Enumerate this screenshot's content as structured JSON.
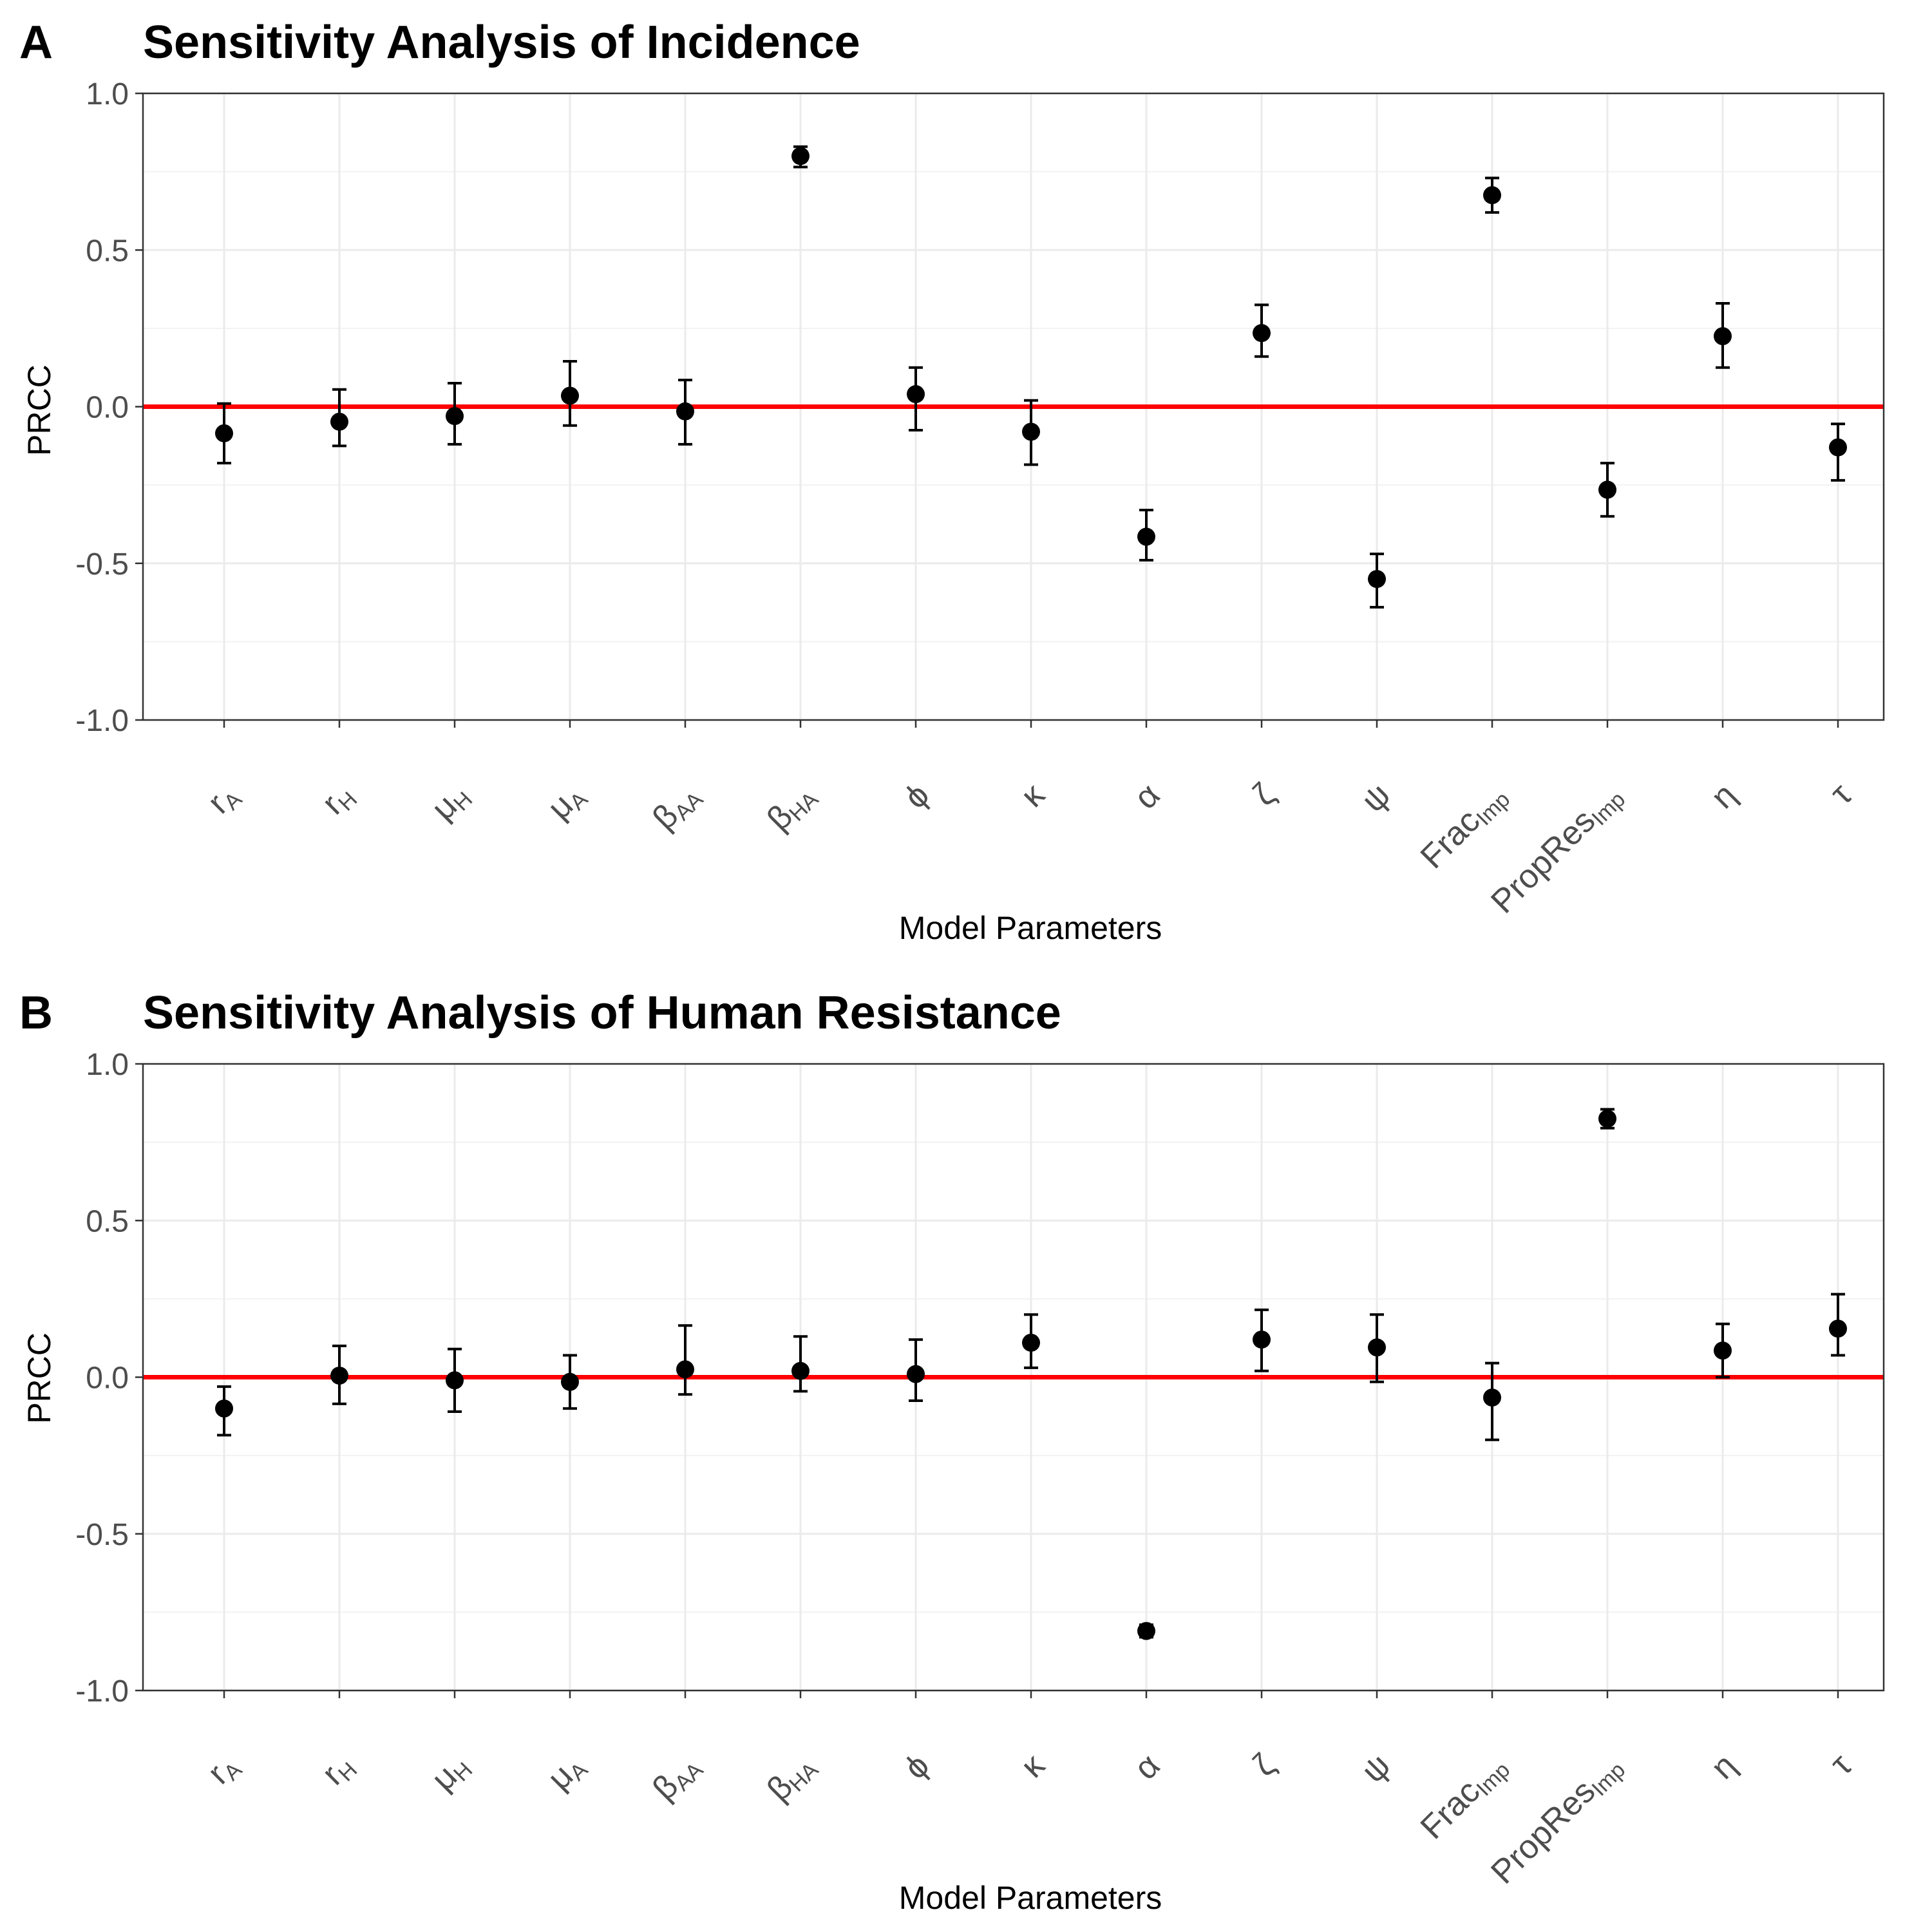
{
  "chart_data": [
    {
      "type": "scatter",
      "panel_label": "A",
      "title": "Sensitivity Analysis of  Incidence",
      "xlabel": "Model Parameters",
      "ylabel": "PRCC",
      "ylim": [
        -1.0,
        1.0
      ],
      "y_ticks": [
        "-1.0",
        "-0.5",
        "0.0",
        "0.5",
        "1.0"
      ],
      "grid": true,
      "reference_line": {
        "y": 0.0,
        "color": "#ff0000"
      },
      "categories": [
        {
          "base": "r",
          "sub": "A"
        },
        {
          "base": "r",
          "sub": "H"
        },
        {
          "base": "μ",
          "sub": "H"
        },
        {
          "base": "μ",
          "sub": "A"
        },
        {
          "base": "β",
          "sub": "AA"
        },
        {
          "base": "β",
          "sub": "HA"
        },
        {
          "base": "ϕ",
          "sub": ""
        },
        {
          "base": "κ",
          "sub": ""
        },
        {
          "base": "α",
          "sub": ""
        },
        {
          "base": "ζ",
          "sub": ""
        },
        {
          "base": "ψ",
          "sub": ""
        },
        {
          "base": "Frac",
          "sub": "Imp"
        },
        {
          "base": "PropRes",
          "sub": "Imp"
        },
        {
          "base": "η",
          "sub": ""
        },
        {
          "base": "τ",
          "sub": ""
        }
      ],
      "values": [
        -0.085,
        -0.048,
        -0.03,
        0.035,
        -0.015,
        0.8,
        0.04,
        -0.08,
        -0.415,
        0.235,
        -0.55,
        0.675,
        -0.265,
        0.225,
        -0.13
      ],
      "lower": [
        -0.18,
        -0.125,
        -0.12,
        -0.06,
        -0.12,
        0.765,
        -0.075,
        -0.185,
        -0.49,
        0.16,
        -0.64,
        0.62,
        -0.35,
        0.125,
        -0.235
      ],
      "upper": [
        0.01,
        0.055,
        0.075,
        0.145,
        0.085,
        0.83,
        0.125,
        0.02,
        -0.33,
        0.325,
        -0.47,
        0.73,
        -0.18,
        0.33,
        -0.055
      ]
    },
    {
      "type": "scatter",
      "panel_label": "B",
      "title": "Sensitivity Analysis of  Human Resistance",
      "xlabel": "Model Parameters",
      "ylabel": "PRCC",
      "ylim": [
        -1.0,
        1.0
      ],
      "y_ticks": [
        "-1.0",
        "-0.5",
        "0.0",
        "0.5",
        "1.0"
      ],
      "grid": true,
      "reference_line": {
        "y": 0.0,
        "color": "#ff0000"
      },
      "categories": [
        {
          "base": "r",
          "sub": "A"
        },
        {
          "base": "r",
          "sub": "H"
        },
        {
          "base": "μ",
          "sub": "H"
        },
        {
          "base": "μ",
          "sub": "A"
        },
        {
          "base": "β",
          "sub": "AA"
        },
        {
          "base": "β",
          "sub": "HA"
        },
        {
          "base": "ϕ",
          "sub": ""
        },
        {
          "base": "κ",
          "sub": ""
        },
        {
          "base": "α",
          "sub": ""
        },
        {
          "base": "ζ",
          "sub": ""
        },
        {
          "base": "ψ",
          "sub": ""
        },
        {
          "base": "Frac",
          "sub": "Imp"
        },
        {
          "base": "PropRes",
          "sub": "Imp"
        },
        {
          "base": "η",
          "sub": ""
        },
        {
          "base": "τ",
          "sub": ""
        }
      ],
      "values": [
        -0.1,
        0.005,
        -0.01,
        -0.015,
        0.025,
        0.02,
        0.01,
        0.11,
        -0.81,
        0.12,
        0.095,
        -0.065,
        0.825,
        0.085,
        0.155
      ],
      "lower": [
        -0.185,
        -0.085,
        -0.11,
        -0.1,
        -0.055,
        -0.045,
        -0.075,
        0.03,
        -0.83,
        0.02,
        -0.015,
        -0.2,
        0.795,
        0.0,
        0.07
      ],
      "upper": [
        -0.03,
        0.1,
        0.09,
        0.07,
        0.165,
        0.13,
        0.12,
        0.2,
        -0.79,
        0.215,
        0.2,
        0.045,
        0.855,
        0.17,
        0.265
      ]
    }
  ]
}
